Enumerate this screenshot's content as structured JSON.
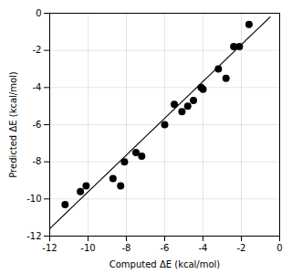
{
  "chart_data": {
    "type": "scatter",
    "xlabel": "Computed ΔE (kcal/mol)",
    "ylabel": "Predicted ΔE (kcal/mol)",
    "series": [
      {
        "type": "line",
        "color": "#000000",
        "x": [
          -12,
          -0.5
        ],
        "values": [
          -11.6,
          -0.2
        ]
      },
      {
        "type": "scatter",
        "color": "#000000",
        "x": [
          -11.2,
          -10.4,
          -10.1,
          -8.7,
          -8.3,
          -8.1,
          -7.5,
          -7.2,
          -6.0,
          -5.5,
          -5.1,
          -4.8,
          -4.5,
          -4.1,
          -4.0,
          -3.2,
          -2.8,
          -2.4,
          -2.1,
          -1.6
        ],
        "values": [
          -10.3,
          -9.6,
          -9.3,
          -8.9,
          -9.3,
          -8.0,
          -7.5,
          -7.7,
          -6.0,
          -4.9,
          -5.3,
          -5.0,
          -4.7,
          -4.0,
          -4.1,
          -3.0,
          -3.5,
          -1.8,
          -1.8,
          -0.6
        ]
      }
    ],
    "xlim": [
      -12,
      0
    ],
    "ylim": [
      -12,
      0
    ],
    "xticks": [
      -12,
      -10,
      -8,
      -6,
      -4,
      -2,
      0
    ],
    "yticks": [
      -12,
      -10,
      -8,
      -6,
      -4,
      -2,
      0
    ],
    "grid": true
  }
}
